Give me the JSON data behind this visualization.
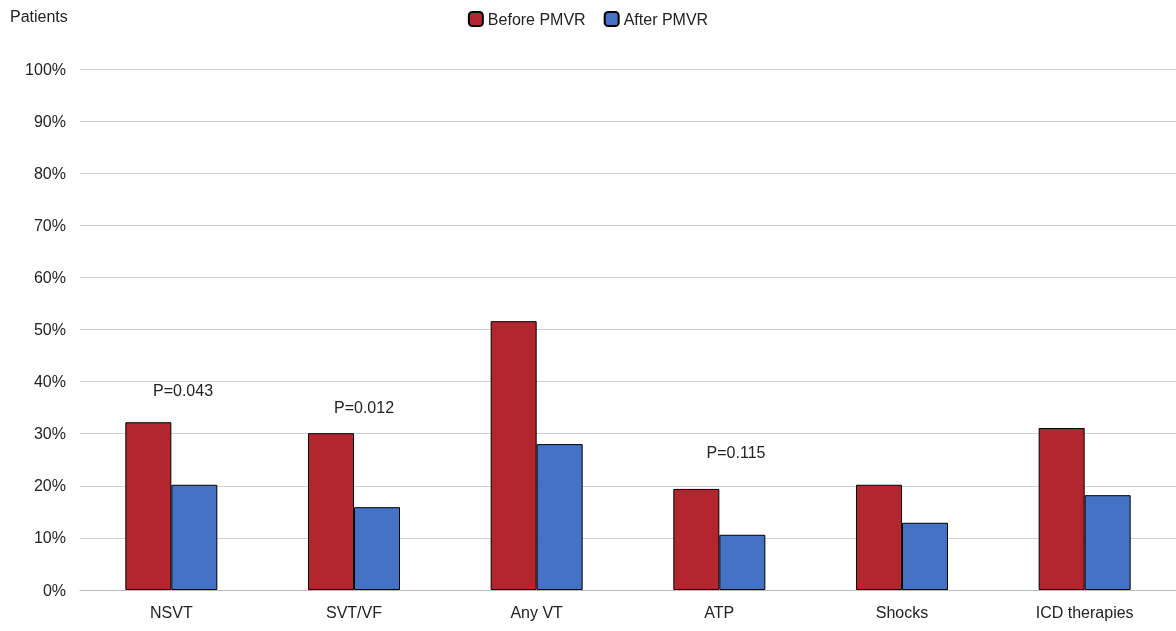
{
  "chart_data": {
    "type": "bar",
    "ylabel": "Patients",
    "categories": [
      "NSVT",
      "SVT/VF",
      "Any VT",
      "ATP",
      "Shocks",
      "ICD therapies"
    ],
    "series": [
      {
        "name": "Before PMVR",
        "color": "#b3262d",
        "values": [
          32.2,
          30.1,
          51.6,
          19.4,
          20.2,
          31.1
        ]
      },
      {
        "name": "After PMVR",
        "color": "#4472c4",
        "values": [
          20.2,
          15.9,
          28.0,
          10.6,
          12.9,
          18.2
        ]
      }
    ],
    "ylim": [
      0,
      100
    ],
    "yticks": [
      {
        "value": 0,
        "label": "0%"
      },
      {
        "value": 10,
        "label": "10%"
      },
      {
        "value": 20,
        "label": "20%"
      },
      {
        "value": 30,
        "label": "30%"
      },
      {
        "value": 40,
        "label": "40%"
      },
      {
        "value": 50,
        "label": "50%"
      },
      {
        "value": 60,
        "label": "60%"
      },
      {
        "value": 70,
        "label": "70%"
      },
      {
        "value": 80,
        "label": "80%"
      },
      {
        "value": 90,
        "label": "90%"
      },
      {
        "value": 100,
        "label": "100%"
      }
    ],
    "grid": "y",
    "legend": "top",
    "annotations": [
      "P=0.043",
      "P=0.012",
      "P=0.115"
    ]
  }
}
